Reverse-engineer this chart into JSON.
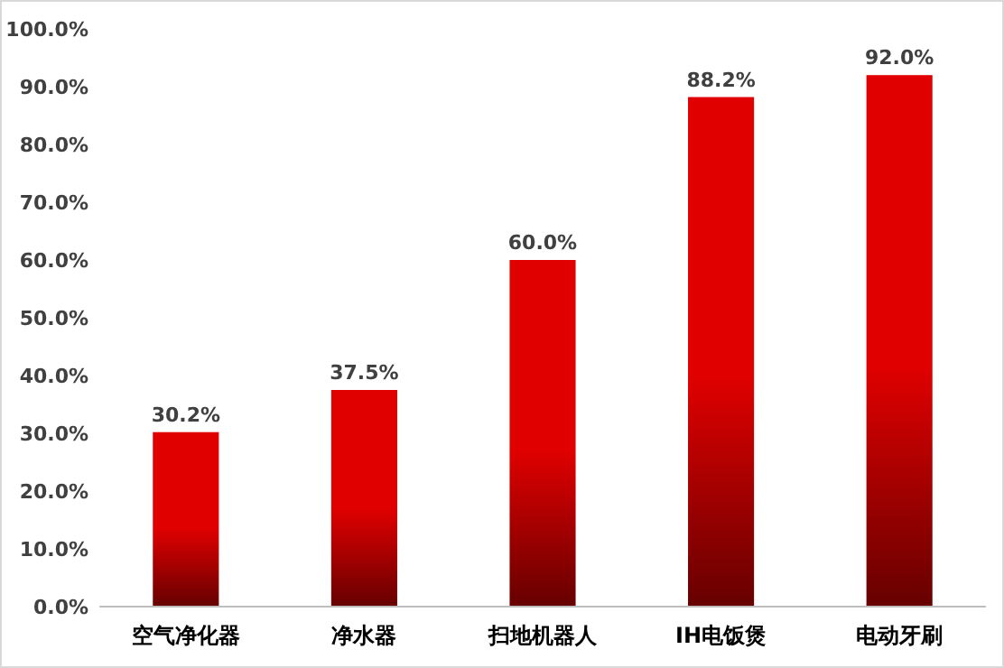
{
  "chart_data": {
    "type": "bar",
    "categories": [
      "空气净化器",
      "净水器",
      "扫地机器人",
      "IH电饭煲",
      "电动牙刷"
    ],
    "values": [
      30.2,
      37.5,
      60.0,
      88.2,
      92.0
    ],
    "value_labels": [
      "30.2%",
      "37.5%",
      "60.0%",
      "88.2%",
      "92.0%"
    ],
    "color": "#e00000",
    "ylim": [
      0,
      100
    ],
    "yticks": [
      {
        "value": 0,
        "label": "0.0%"
      },
      {
        "value": 10,
        "label": "10.0%"
      },
      {
        "value": 20,
        "label": "20.0%"
      },
      {
        "value": 30,
        "label": "30.0%"
      },
      {
        "value": 40,
        "label": "40.0%"
      },
      {
        "value": 50,
        "label": "50.0%"
      },
      {
        "value": 60,
        "label": "60.0%"
      },
      {
        "value": 70,
        "label": "70.0%"
      },
      {
        "value": 80,
        "label": "80.0%"
      },
      {
        "value": 90,
        "label": "90.0%"
      },
      {
        "value": 100,
        "label": "100.0%"
      }
    ],
    "grid": false
  }
}
